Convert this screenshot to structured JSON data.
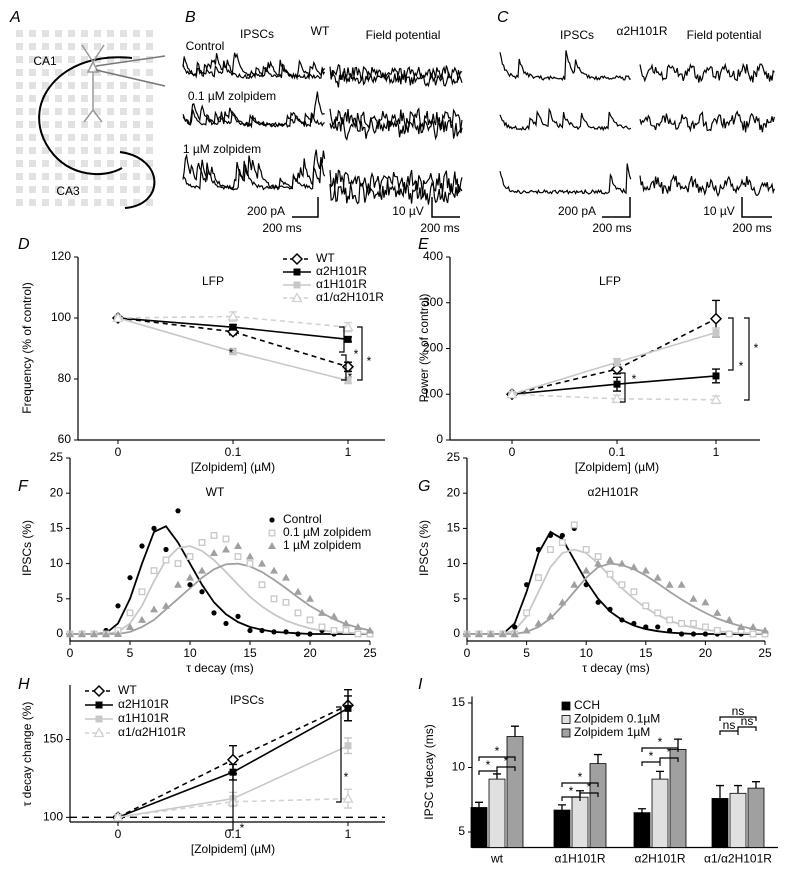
{
  "panels": [
    {
      "label": "A",
      "texts": [
        "CA1",
        "CA3"
      ]
    },
    {
      "label": "B",
      "texts": [
        "IPSCs",
        "WT",
        "Field potential",
        "Control",
        "0.1 µM zolpidem",
        "1 µM zolpidem",
        "200 pA",
        "200 ms",
        "10 µV",
        "200 ms"
      ]
    },
    {
      "label": "C",
      "texts": [
        "IPSCs",
        "α2H101R",
        "Field potential",
        "200 pA",
        "200 ms",
        "10 µV",
        "200 ms"
      ]
    }
  ],
  "chart_data": [
    {
      "type": "line",
      "label": "D",
      "title": "LFP",
      "x_label": "[Zolpidem] (µM)",
      "y_label": "Frequency (% of control)",
      "categories": [
        "0",
        "0.1",
        "1"
      ],
      "ylim": [
        60,
        120
      ],
      "yticks": [
        60,
        80,
        100,
        120
      ],
      "legend": "upper right",
      "series": [
        {
          "name": "WT",
          "color": "#000000",
          "dashed": true,
          "marker": "diamond-open",
          "values": [
            100,
            95.5,
            84
          ],
          "errors": [
            0,
            1,
            1.5
          ]
        },
        {
          "name": "α2H101R",
          "color": "#000000",
          "dashed": false,
          "marker": "square",
          "values": [
            100,
            97,
            93
          ],
          "errors": [
            0,
            0.8,
            0.8
          ]
        },
        {
          "name": "α1H101R",
          "color": "#c8c8c8",
          "dashed": false,
          "marker": "square",
          "values": [
            100,
            89,
            79.5
          ],
          "errors": [
            0,
            1,
            1
          ]
        },
        {
          "name": "α1/α2H101R",
          "color": "#d2d2d2",
          "dashed": true,
          "marker": "triangle-open",
          "values": [
            100,
            100.5,
            97
          ],
          "errors": [
            0,
            1.5,
            1.5
          ]
        }
      ],
      "annotations": [
        "*",
        "*",
        "*",
        "*"
      ]
    },
    {
      "type": "line",
      "label": "E",
      "title": "LFP",
      "x_label": "[Zolpidem] (µM)",
      "y_label": "Power (% of control)",
      "categories": [
        "0",
        "0.1",
        "1"
      ],
      "ylim": [
        0,
        400
      ],
      "yticks": [
        0,
        100,
        200,
        300,
        400
      ],
      "series": [
        {
          "color": "#000000",
          "dashed": true,
          "marker": "diamond-open",
          "values": [
            100,
            155,
            265
          ],
          "errors": [
            0,
            10,
            40
          ]
        },
        {
          "color": "#000000",
          "dashed": false,
          "marker": "square",
          "values": [
            100,
            122,
            140
          ],
          "errors": [
            0,
            15,
            15
          ]
        },
        {
          "color": "#c8c8c8",
          "dashed": false,
          "marker": "square",
          "values": [
            100,
            170,
            235
          ],
          "errors": [
            0,
            8,
            10
          ]
        },
        {
          "color": "#d2d2d2",
          "dashed": true,
          "marker": "triangle-open",
          "values": [
            100,
            90,
            88
          ],
          "errors": [
            0,
            8,
            8
          ]
        }
      ],
      "annotations": [
        "*",
        "*",
        "*"
      ]
    },
    {
      "type": "scatter",
      "label": "F",
      "title": "WT",
      "x_label": "τ decay (ms)",
      "y_label": "IPSCs (%)",
      "x": [
        0,
        1,
        2,
        3,
        4,
        5,
        6,
        7,
        8,
        9,
        10,
        11,
        12,
        13,
        14,
        15,
        16,
        17,
        18,
        19,
        20,
        21,
        22,
        23,
        24,
        25
      ],
      "xlim": [
        0,
        25
      ],
      "xticks": [
        0,
        5,
        10,
        15,
        20,
        25
      ],
      "ylim": [
        0,
        25
      ],
      "yticks": [
        0,
        5,
        10,
        15,
        20,
        25
      ],
      "legend": "upper right",
      "series": [
        {
          "name": "Control",
          "color": "#000000",
          "marker": "circle",
          "values": [
            0,
            0,
            0,
            0.5,
            4,
            8,
            12.5,
            15,
            12,
            17.5,
            7,
            6,
            3,
            1.5,
            2.5,
            0.5,
            0.5,
            0.3,
            0.3,
            0,
            0,
            0.5,
            0,
            0.5,
            0,
            0
          ],
          "fit_values": [
            0,
            0,
            0,
            0.1,
            1.5,
            5,
            10,
            14.5,
            15.3,
            13,
            10,
            7,
            4.5,
            2.8,
            1.7,
            1,
            0.6,
            0.3,
            0.2,
            0.1,
            0,
            0,
            0,
            0,
            0,
            0
          ]
        },
        {
          "name": "0.1 µM zolpidem",
          "color": "#c8c8c8",
          "marker": "square-open",
          "values": [
            0,
            0,
            0,
            0,
            0.5,
            3,
            6,
            9,
            10.5,
            10,
            11,
            13,
            14,
            13.5,
            11,
            10,
            7,
            5,
            4.5,
            3,
            2,
            1,
            0.5,
            0.5,
            0,
            0
          ],
          "fit_values": [
            0,
            0,
            0,
            0,
            0.3,
            1.5,
            4,
            7.5,
            10.5,
            12.2,
            12.5,
            11.8,
            10.5,
            8.8,
            7,
            5.3,
            3.9,
            2.8,
            1.9,
            1.3,
            0.8,
            0.5,
            0.3,
            0.2,
            0.1,
            0
          ]
        },
        {
          "name": "1 µM zolpidem",
          "color": "#a0a0a0",
          "marker": "triangle",
          "values": [
            0,
            0,
            0,
            0,
            0,
            1,
            2,
            3.5,
            4,
            7,
            8,
            9,
            11.5,
            12,
            12.5,
            11,
            10,
            9,
            8,
            6,
            5,
            3,
            2.5,
            1.5,
            1,
            0.5
          ],
          "fit_values": [
            0,
            0,
            0,
            0,
            0,
            0.3,
            1,
            2,
            3.5,
            5,
            6.5,
            8,
            9.2,
            9.9,
            10,
            9.6,
            8.8,
            7.7,
            6.5,
            5.2,
            4,
            3,
            2.1,
            1.4,
            0.9,
            0.5
          ]
        }
      ]
    },
    {
      "type": "scatter",
      "label": "G",
      "title": "α2H101R",
      "x_label": "τ decay (ms)",
      "y_label": "IPSCs (%)",
      "x": [
        0,
        1,
        2,
        3,
        4,
        5,
        6,
        7,
        8,
        9,
        10,
        11,
        12,
        13,
        14,
        15,
        16,
        17,
        18,
        19,
        20,
        21,
        22,
        23,
        24,
        25
      ],
      "xlim": [
        0,
        25
      ],
      "xticks": [
        0,
        5,
        10,
        15,
        20,
        25
      ],
      "ylim": [
        0,
        25
      ],
      "yticks": [
        0,
        5,
        10,
        15,
        20,
        25
      ],
      "series": [
        {
          "color": "#000000",
          "marker": "circle",
          "values": [
            0,
            0,
            0,
            0,
            1,
            7,
            12,
            14,
            14,
            15,
            7,
            4.5,
            3.5,
            2,
            1.5,
            1,
            1,
            0.5,
            0,
            0,
            0,
            0,
            0,
            0,
            0,
            0
          ],
          "fit_values": [
            0,
            0,
            0,
            0,
            1.5,
            6,
            11.5,
            14.5,
            13.5,
            10.5,
            7.5,
            5,
            3.2,
            2,
            1.2,
            0.7,
            0.4,
            0.2,
            0.1,
            0,
            0,
            0,
            0,
            0,
            0,
            0
          ]
        },
        {
          "color": "#c8c8c8",
          "marker": "square-open",
          "values": [
            0,
            0,
            0,
            0,
            0,
            3,
            8,
            12,
            13,
            15.5,
            12,
            11,
            8.5,
            7,
            6,
            4,
            3,
            2,
            1.5,
            1.5,
            1,
            0.5,
            0,
            0.5,
            0,
            0
          ],
          "fit_values": [
            0,
            0,
            0,
            0,
            0.5,
            2.5,
            6,
            9.5,
            11.5,
            12,
            11.5,
            10,
            8.2,
            6.5,
            5,
            3.7,
            2.7,
            1.9,
            1.3,
            0.9,
            0.6,
            0.4,
            0.2,
            0.1,
            0.1,
            0
          ]
        },
        {
          "color": "#a0a0a0",
          "marker": "triangle",
          "values": [
            0,
            0,
            0,
            0,
            0,
            0.5,
            1.5,
            2.5,
            4.5,
            7,
            9,
            10,
            10.5,
            10,
            9.5,
            9,
            8,
            7,
            7,
            5,
            4.5,
            3,
            2,
            1,
            1,
            0.5
          ],
          "fit_values": [
            0,
            0,
            0,
            0,
            0,
            0.3,
            1,
            2.2,
            4,
            6,
            8,
            9.5,
            10,
            9.8,
            9.2,
            8.3,
            7.2,
            6,
            4.9,
            3.9,
            3,
            2.2,
            1.6,
            1.1,
            0.7,
            0.4
          ]
        }
      ]
    },
    {
      "type": "line",
      "label": "H",
      "title": "IPSCs",
      "x_label": "[Zolpidem] (µM)",
      "y_label": "τ decay change (%)",
      "categories": [
        "0",
        "0.1",
        "1"
      ],
      "ylim": [
        97,
        185
      ],
      "yticks": [
        100,
        150
      ],
      "reference_line": 100,
      "legend": "upper left",
      "series": [
        {
          "name": "WT",
          "color": "#000000",
          "dashed": true,
          "marker": "diamond-open",
          "values": [
            100,
            137,
            172
          ],
          "errors": [
            0,
            9,
            10
          ]
        },
        {
          "name": "α2H101R",
          "color": "#000000",
          "dashed": false,
          "marker": "square",
          "values": [
            100,
            129,
            170
          ],
          "errors": [
            0,
            5,
            8
          ]
        },
        {
          "name": "α1H101R",
          "color": "#c8c8c8",
          "dashed": false,
          "marker": "square",
          "values": [
            100,
            112,
            146
          ],
          "errors": [
            0,
            4,
            5
          ]
        },
        {
          "name": "α1/α2H101R",
          "color": "#d2d2d2",
          "dashed": true,
          "marker": "triangle-open",
          "values": [
            100,
            110,
            112
          ],
          "errors": [
            0,
            3,
            6
          ]
        }
      ],
      "annotations": [
        "*",
        "*"
      ]
    },
    {
      "type": "bar",
      "label": "I",
      "y_label": "IPSC τdecay (ms)",
      "categories": [
        "wt",
        "α1H101R",
        "α2H101R",
        "α1/α2H101R"
      ],
      "ylim": [
        3.8,
        15.5
      ],
      "yticks": [
        5,
        10,
        15
      ],
      "legend": "upper right",
      "series": [
        {
          "name": "CCH",
          "color": "#000000",
          "values": [
            6.9,
            6.7,
            6.5,
            7.6
          ],
          "errors": [
            0.4,
            0.4,
            0.3,
            1.0
          ]
        },
        {
          "name": "Zolpidem 0.1µM",
          "color": "#e0e0e0",
          "values": [
            9.1,
            7.7,
            9.1,
            8.0
          ],
          "errors": [
            0.4,
            0.5,
            0.6,
            0.6
          ]
        },
        {
          "name": "Zolpidem 1µM",
          "color": "#a0a0a0",
          "values": [
            12.4,
            10.3,
            11.4,
            8.4
          ],
          "errors": [
            0.8,
            0.7,
            0.8,
            0.5
          ]
        }
      ],
      "annotations": [
        "*",
        "*",
        "*",
        "*",
        "*",
        "*",
        "*",
        "*",
        "*",
        "ns",
        "ns",
        "ns"
      ]
    }
  ]
}
